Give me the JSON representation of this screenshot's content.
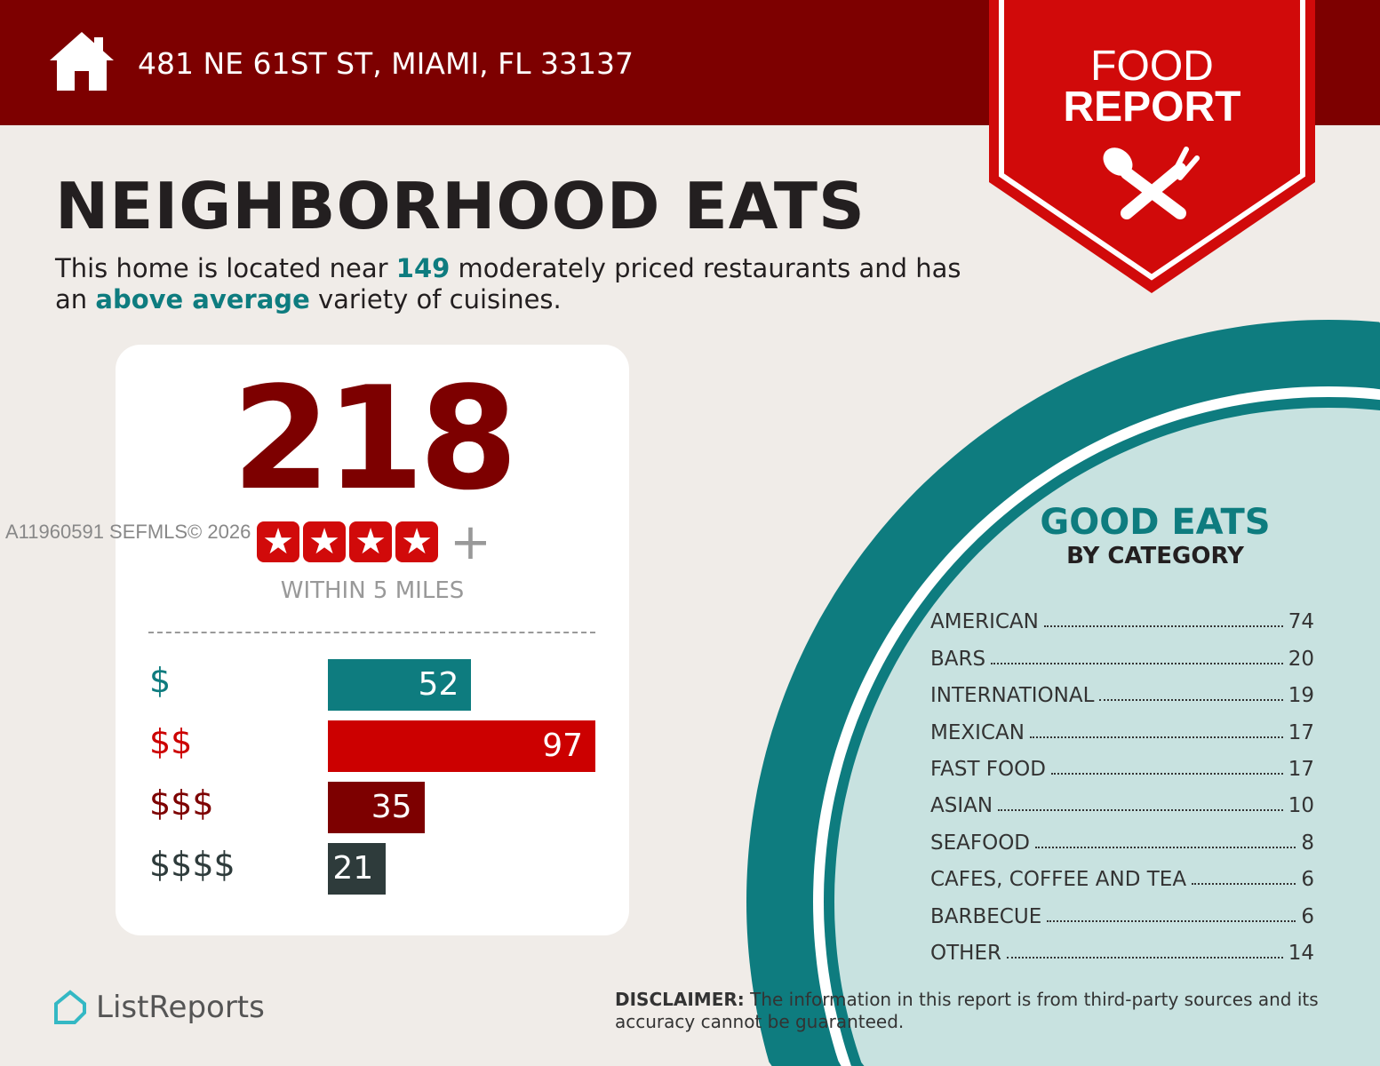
{
  "header": {
    "address": "481 NE 61ST ST, MIAMI, FL 33137",
    "badge_line1": "FOOD",
    "badge_line2": "REPORT"
  },
  "title": "NEIGHBORHOOD EATS",
  "subtitle": {
    "p1": "This home is located near ",
    "count": "149",
    "p2": " moderately priced restaurants and has an ",
    "variety": "above average",
    "p3": " variety of cuisines."
  },
  "summary": {
    "total": "218",
    "rating_stars": 4,
    "plus": "+",
    "within": "WITHIN 5 MILES"
  },
  "watermark": "A11960591  SEFMLS© 2026",
  "chart_data": {
    "type": "bar",
    "orientation": "horizontal",
    "categories": [
      "$",
      "$$",
      "$$$",
      "$$$$"
    ],
    "values": [
      52,
      97,
      35,
      21
    ],
    "colors": [
      "#0e7c7f",
      "#cc0000",
      "#7d0000",
      "#2e3b3b"
    ]
  },
  "good_eats": {
    "title": "GOOD EATS",
    "subtitle": "BY CATEGORY",
    "items": [
      {
        "name": "AMERICAN",
        "count": "74"
      },
      {
        "name": "BARS",
        "count": "20"
      },
      {
        "name": "INTERNATIONAL",
        "count": "19"
      },
      {
        "name": "MEXICAN",
        "count": "17"
      },
      {
        "name": "FAST FOOD",
        "count": "17"
      },
      {
        "name": "ASIAN",
        "count": "10"
      },
      {
        "name": "SEAFOOD",
        "count": "8"
      },
      {
        "name": "CAFES, COFFEE AND TEA",
        "count": "6"
      },
      {
        "name": "BARBECUE",
        "count": "6"
      },
      {
        "name": "OTHER",
        "count": "14"
      }
    ]
  },
  "footer": {
    "logo": "ListReports",
    "disclaimer_label": "DISCLAIMER:",
    "disclaimer": " The information in this report is from third-party sources and its accuracy cannot be guaranteed."
  },
  "colors": {
    "header": "#7d0000",
    "accent": "#0e7c7f",
    "badge": "#d10a0a"
  }
}
